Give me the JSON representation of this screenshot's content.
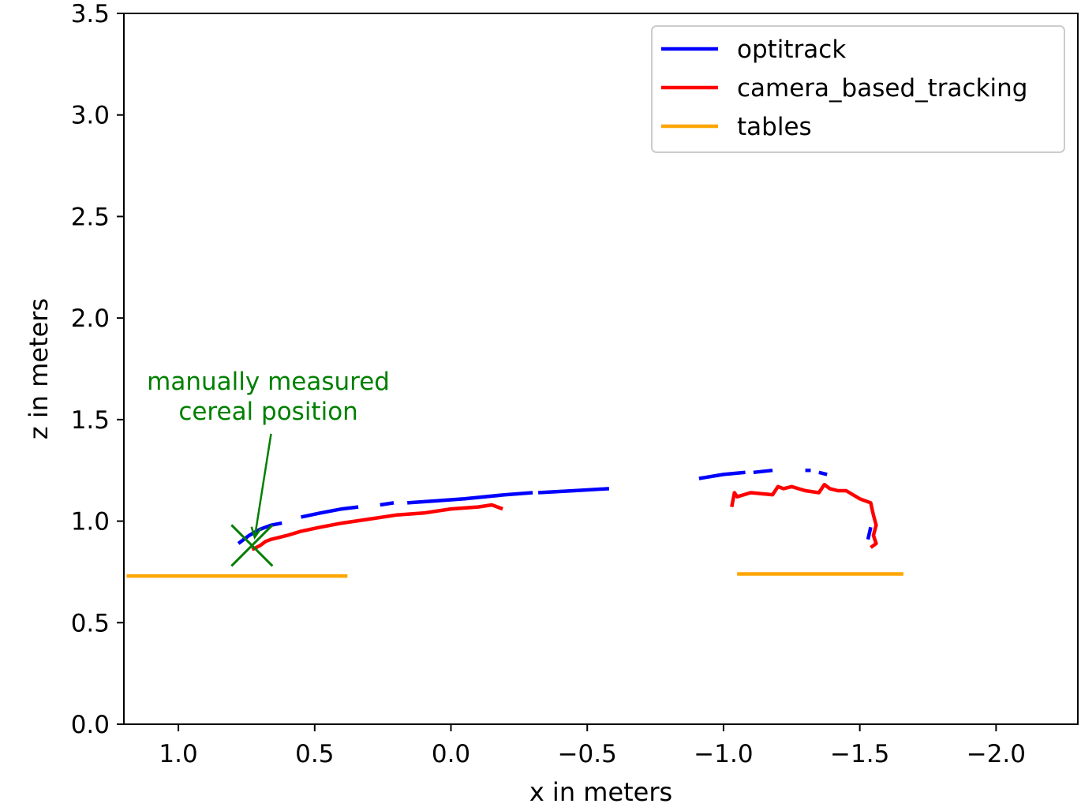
{
  "chart_data": {
    "type": "line",
    "title": "",
    "xlabel": "x in meters",
    "ylabel": "z in meters",
    "xlim": [
      1.2,
      -2.3
    ],
    "ylim": [
      0.0,
      3.5
    ],
    "xticks": [
      1.0,
      0.5,
      0.0,
      -0.5,
      -1.0,
      -1.5,
      -2.0
    ],
    "xtick_labels": [
      "1.0",
      "0.5",
      "0.0",
      "−0.5",
      "−1.0",
      "−1.5",
      "−2.0"
    ],
    "yticks": [
      0.0,
      0.5,
      1.0,
      1.5,
      2.0,
      2.5,
      3.0,
      3.5
    ],
    "ytick_labels": [
      "0.0",
      "0.5",
      "1.0",
      "1.5",
      "2.0",
      "2.5",
      "3.0",
      "3.5"
    ],
    "legend_position": "top-right",
    "series": [
      {
        "name": "optitrack",
        "color": "#0000ff",
        "segments": [
          [
            [
              0.78,
              0.89
            ],
            [
              0.74,
              0.93
            ],
            [
              0.7,
              0.96
            ],
            [
              0.66,
              0.98
            ],
            [
              0.62,
              0.99
            ]
          ],
          [
            [
              0.55,
              1.02
            ],
            [
              0.48,
              1.04
            ],
            [
              0.4,
              1.06
            ],
            [
              0.34,
              1.07
            ]
          ],
          [
            [
              0.26,
              1.08
            ],
            [
              0.21,
              1.09
            ]
          ],
          [
            [
              0.16,
              1.09
            ],
            [
              0.05,
              1.1
            ],
            [
              -0.05,
              1.11
            ],
            [
              -0.2,
              1.13
            ],
            [
              -0.3,
              1.14
            ]
          ],
          [
            [
              -0.32,
              1.14
            ],
            [
              -0.45,
              1.15
            ],
            [
              -0.58,
              1.16
            ]
          ],
          [
            [
              -0.91,
              1.21
            ],
            [
              -1.0,
              1.23
            ],
            [
              -1.08,
              1.24
            ]
          ],
          [
            [
              -1.11,
              1.24
            ],
            [
              -1.18,
              1.25
            ]
          ],
          [
            [
              -1.3,
              1.25
            ],
            [
              -1.32,
              1.25
            ]
          ],
          [
            [
              -1.35,
              1.24
            ],
            [
              -1.38,
              1.23
            ]
          ],
          [
            [
              -1.53,
              0.91
            ],
            [
              -1.54,
              0.97
            ]
          ]
        ]
      },
      {
        "name": "camera_based_tracking",
        "color": "#ff0000",
        "segments": [
          [
            [
              0.73,
              0.86
            ],
            [
              0.7,
              0.88
            ],
            [
              0.68,
              0.9
            ],
            [
              0.66,
              0.91
            ],
            [
              0.63,
              0.92
            ],
            [
              0.6,
              0.93
            ],
            [
              0.55,
              0.95
            ],
            [
              0.48,
              0.97
            ],
            [
              0.4,
              0.99
            ],
            [
              0.3,
              1.01
            ],
            [
              0.2,
              1.03
            ],
            [
              0.1,
              1.04
            ],
            [
              0.0,
              1.06
            ],
            [
              -0.1,
              1.07
            ],
            [
              -0.15,
              1.08
            ],
            [
              -0.19,
              1.06
            ]
          ],
          [
            [
              -1.03,
              1.07
            ],
            [
              -1.04,
              1.14
            ],
            [
              -1.05,
              1.12
            ],
            [
              -1.1,
              1.14
            ],
            [
              -1.18,
              1.13
            ],
            [
              -1.2,
              1.17
            ],
            [
              -1.22,
              1.16
            ],
            [
              -1.25,
              1.17
            ],
            [
              -1.3,
              1.15
            ],
            [
              -1.35,
              1.14
            ],
            [
              -1.37,
              1.18
            ],
            [
              -1.39,
              1.16
            ],
            [
              -1.42,
              1.15
            ],
            [
              -1.45,
              1.15
            ],
            [
              -1.5,
              1.11
            ],
            [
              -1.54,
              1.09
            ],
            [
              -1.55,
              1.03
            ],
            [
              -1.56,
              0.98
            ],
            [
              -1.55,
              0.93
            ],
            [
              -1.56,
              0.89
            ],
            [
              -1.54,
              0.87
            ]
          ]
        ]
      },
      {
        "name": "tables",
        "color": "#ffa500",
        "segments": [
          [
            [
              1.19,
              0.73
            ],
            [
              0.38,
              0.73
            ]
          ],
          [
            [
              -1.05,
              0.74
            ],
            [
              -1.66,
              0.74
            ]
          ]
        ]
      }
    ],
    "annotations": [
      {
        "text_lines": [
          "manually measured",
          " cereal position"
        ],
        "text_anchor_xy": [
          0.67,
          1.5
        ],
        "arrow_from": [
          0.66,
          1.43
        ],
        "arrow_to": [
          0.72,
          0.92
        ],
        "color": "#008000"
      }
    ],
    "markers": [
      {
        "type": "x",
        "x": 0.73,
        "y": 0.88,
        "color": "#008000"
      }
    ]
  }
}
